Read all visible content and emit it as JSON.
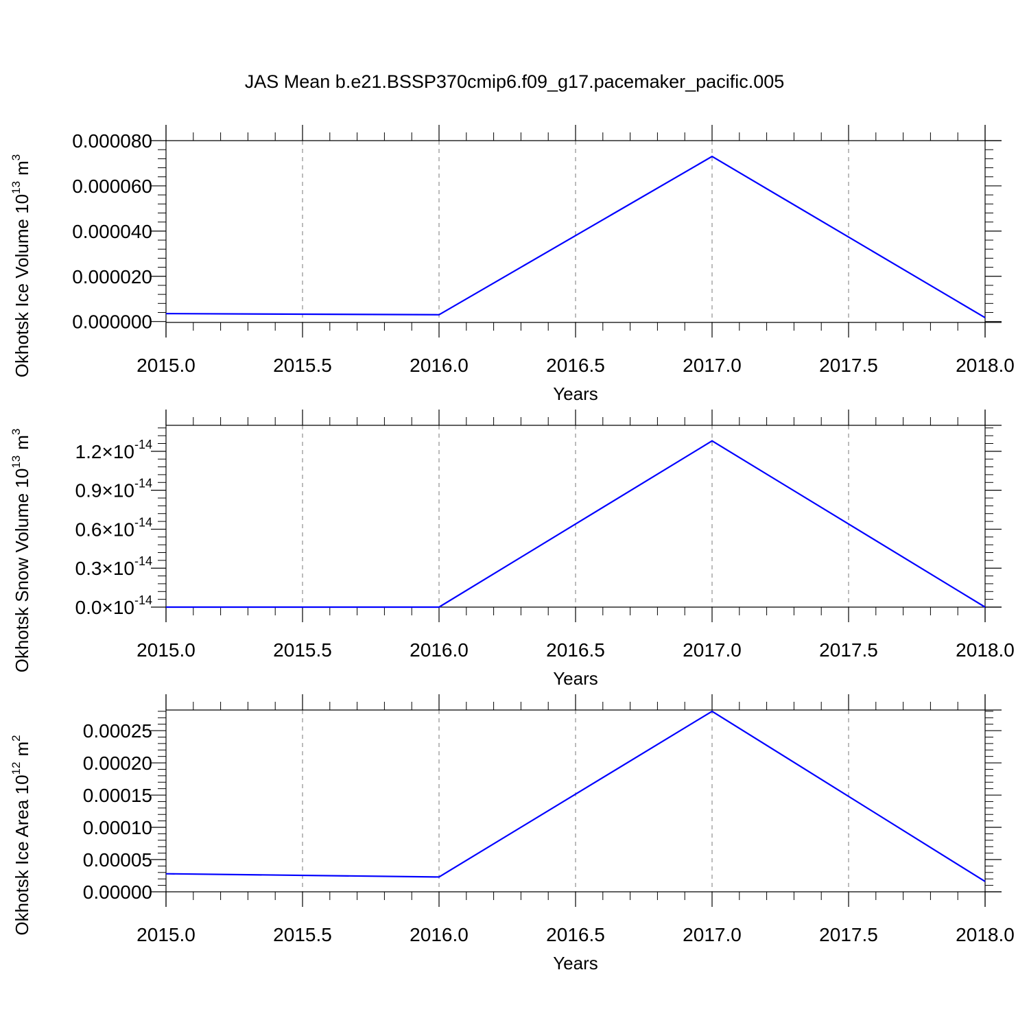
{
  "title": "JAS Mean b.e21.BSSP370cmip6.f09_g17.pacemaker_pacific.005",
  "colors": {
    "series": "#0000ff",
    "axis": "#000000",
    "grid": "#777777"
  },
  "chart_data": [
    {
      "type": "line",
      "ylabel": "Okhotsk Ice Volume 10",
      "ylabel_exponent": "13",
      "ylabel_unit": "m",
      "ylabel_unit_exponent": "3",
      "xlabel": "Years",
      "xlim": [
        2015.0,
        2018.0
      ],
      "ylim": [
        -4e-07,
        8e-05
      ],
      "x_ticks": [
        "2015.0",
        "2015.5",
        "2016.0",
        "2016.5",
        "2017.0",
        "2017.5",
        "2018.0"
      ],
      "y_ticks": [
        {
          "value": 0.0,
          "label": "0.000000"
        },
        {
          "value": 2e-05,
          "label": "0.000020"
        },
        {
          "value": 4e-05,
          "label": "0.000040"
        },
        {
          "value": 6e-05,
          "label": "0.000060"
        },
        {
          "value": 8e-05,
          "label": "0.000080"
        }
      ],
      "grid": "vertical dashed",
      "x": [
        2015,
        2016,
        2017,
        2018
      ],
      "values": [
        3.5e-06,
        3e-06,
        7.3e-05,
        1.7e-06
      ]
    },
    {
      "type": "line",
      "ylabel": "Okhotsk Snow Volume 10",
      "ylabel_exponent": "13",
      "ylabel_unit": "m",
      "ylabel_unit_exponent": "3",
      "xlabel": "Years",
      "xlim": [
        2015.0,
        2018.0
      ],
      "ylim": [
        0.0,
        1.4e-14
      ],
      "x_ticks": [
        "2015.0",
        "2015.5",
        "2016.0",
        "2016.5",
        "2017.0",
        "2017.5",
        "2018.0"
      ],
      "y_ticks": [
        {
          "value": 0.0,
          "mantissa": "0.0",
          "times": "×10",
          "exponent": "-14"
        },
        {
          "value": 3e-15,
          "mantissa": "0.3",
          "times": "×10",
          "exponent": "-14"
        },
        {
          "value": 6e-15,
          "mantissa": "0.6",
          "times": "×10",
          "exponent": "-14"
        },
        {
          "value": 9e-15,
          "mantissa": "0.9",
          "times": "×10",
          "exponent": "-14"
        },
        {
          "value": 1.2e-14,
          "mantissa": "1.2",
          "times": "×10",
          "exponent": "-14"
        }
      ],
      "grid": "vertical dashed",
      "x": [
        2015,
        2016,
        2017,
        2018
      ],
      "values": [
        0.0,
        0.0,
        1.28e-14,
        0.0
      ]
    },
    {
      "type": "line",
      "ylabel": "Okhotsk Ice Area 10",
      "ylabel_exponent": "12",
      "ylabel_unit": "m",
      "ylabel_unit_exponent": "2",
      "xlabel": "Years",
      "xlim": [
        2015.0,
        2018.0
      ],
      "ylim": [
        0.0,
        0.000282
      ],
      "x_ticks": [
        "2015.0",
        "2015.5",
        "2016.0",
        "2016.5",
        "2017.0",
        "2017.5",
        "2018.0"
      ],
      "y_ticks": [
        {
          "value": 0.0,
          "label": "0.00000"
        },
        {
          "value": 5e-05,
          "label": "0.00005"
        },
        {
          "value": 0.0001,
          "label": "0.00010"
        },
        {
          "value": 0.00015,
          "label": "0.00015"
        },
        {
          "value": 0.0002,
          "label": "0.00020"
        },
        {
          "value": 0.00025,
          "label": "0.00025"
        }
      ],
      "grid": "vertical dashed",
      "x": [
        2015,
        2016,
        2017,
        2018
      ],
      "values": [
        2.8e-05,
        2.3e-05,
        0.00028,
        1.6e-05
      ]
    }
  ]
}
